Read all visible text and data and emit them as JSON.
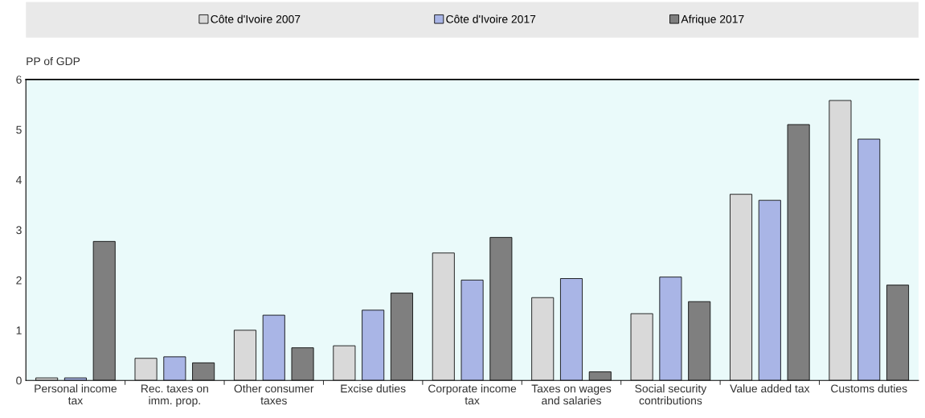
{
  "chart_data": {
    "type": "bar",
    "ylabel": "PP of GDP",
    "categories": [
      "Personal income\ntax",
      "Rec. taxes on\nimm. prop.",
      "Other consumer\ntaxes",
      "Excise duties",
      "Corporate income\ntax",
      "Taxes on wages\nand salaries",
      "Social security\ncontributions",
      "Value added tax",
      "Customs duties"
    ],
    "series": [
      {
        "name": "Côte d'Ivoire 2007",
        "color": "#d9d9d9",
        "values": [
          0.05,
          0.44,
          1.0,
          0.69,
          2.54,
          1.65,
          1.33,
          3.71,
          5.58
        ]
      },
      {
        "name": "Côte d'Ivoire 2017",
        "color": "#a9b5e6",
        "values": [
          0.05,
          0.47,
          1.3,
          1.4,
          2.0,
          2.03,
          2.06,
          3.59,
          4.81
        ]
      },
      {
        "name": "Afrique 2017",
        "color": "#7f7f7f",
        "values": [
          2.77,
          0.35,
          0.65,
          1.74,
          2.85,
          0.17,
          1.57,
          5.1,
          1.9
        ]
      }
    ],
    "ylim": [
      0,
      6
    ],
    "yticks": [
      0,
      1,
      2,
      3,
      4,
      5,
      6
    ],
    "grid": false,
    "legend": "top"
  }
}
